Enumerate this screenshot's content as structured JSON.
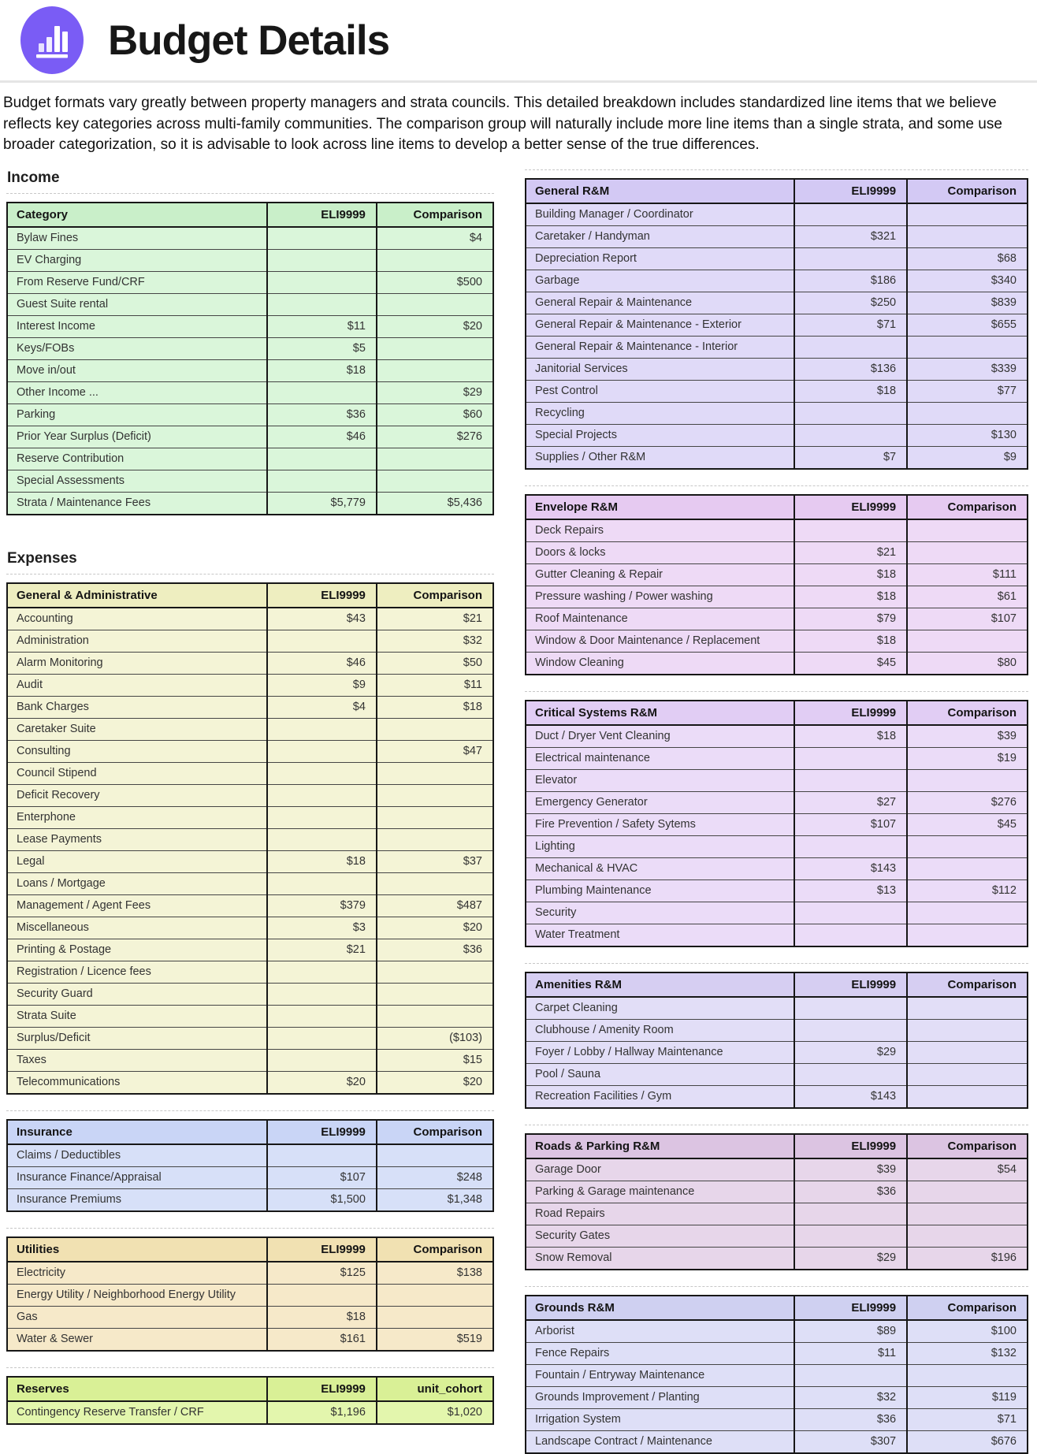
{
  "header": {
    "title": "Budget Details",
    "icon": "bar-chart-icon",
    "badge_color": "#7a5cf5"
  },
  "intro": "Budget formats vary greatly between property managers and strata councils. This detailed breakdown includes standardized line items that we believe reflects key categories across multi-family communities. The comparison group will naturally include more line items than a single strata, and some use broader categorization, so it is advisable to look across line items to develop a better sense of the true differences.",
  "sections": {
    "income": "Income",
    "expenses": "Expenses"
  },
  "layout": {
    "left": [
      {
        "heading": "income"
      },
      {
        "table": "income"
      },
      {
        "heading": "expenses"
      },
      {
        "table": "general_admin"
      },
      {
        "table": "insurance"
      },
      {
        "table": "utilities"
      },
      {
        "table": "reserves"
      }
    ],
    "right": [
      {
        "table": "general_rm"
      },
      {
        "table": "envelope_rm"
      },
      {
        "table": "critical_rm"
      },
      {
        "table": "amenities_rm"
      },
      {
        "table": "roads_rm"
      },
      {
        "table": "grounds_rm"
      }
    ]
  },
  "tables": {
    "income": {
      "title": "Category",
      "col1": "ELI9999",
      "col2": "Comparison",
      "colors": {
        "header_bg": "#c9efc9",
        "row_bg": "#daf6da"
      },
      "rows": [
        [
          "Bylaw Fines",
          "",
          "$4"
        ],
        [
          "EV Charging",
          "",
          ""
        ],
        [
          "From Reserve Fund/CRF",
          "",
          "$500"
        ],
        [
          "Guest Suite rental",
          "",
          ""
        ],
        [
          "Interest Income",
          "$11",
          "$20"
        ],
        [
          "Keys/FOBs",
          "$5",
          ""
        ],
        [
          "Move in/out",
          "$18",
          ""
        ],
        [
          "Other Income ...",
          "",
          "$29"
        ],
        [
          "Parking",
          "$36",
          "$60"
        ],
        [
          "Prior Year Surplus (Deficit)",
          "$46",
          "$276"
        ],
        [
          "Reserve Contribution",
          "",
          ""
        ],
        [
          "Special Assessments",
          "",
          ""
        ],
        [
          "Strata / Maintenance Fees",
          "$5,779",
          "$5,436"
        ]
      ]
    },
    "general_admin": {
      "title": "General & Administrative",
      "col1": "ELI9999",
      "col2": "Comparison",
      "colors": {
        "header_bg": "#eeeec0",
        "row_bg": "#f4f4d6"
      },
      "rows": [
        [
          "Accounting",
          "$43",
          "$21"
        ],
        [
          "Administration",
          "",
          "$32"
        ],
        [
          "Alarm Monitoring",
          "$46",
          "$50"
        ],
        [
          "Audit",
          "$9",
          "$11"
        ],
        [
          "Bank Charges",
          "$4",
          "$18"
        ],
        [
          "Caretaker Suite",
          "",
          ""
        ],
        [
          "Consulting",
          "",
          "$47"
        ],
        [
          "Council Stipend",
          "",
          ""
        ],
        [
          "Deficit Recovery",
          "",
          ""
        ],
        [
          "Enterphone",
          "",
          ""
        ],
        [
          "Lease Payments",
          "",
          ""
        ],
        [
          "Legal",
          "$18",
          "$37"
        ],
        [
          "Loans / Mortgage",
          "",
          ""
        ],
        [
          "Management / Agent Fees",
          "$379",
          "$487"
        ],
        [
          "Miscellaneous",
          "$3",
          "$20"
        ],
        [
          "Printing & Postage",
          "$21",
          "$36"
        ],
        [
          "Registration / Licence fees",
          "",
          ""
        ],
        [
          "Security Guard",
          "",
          ""
        ],
        [
          "Strata Suite",
          "",
          ""
        ],
        [
          "Surplus/Deficit",
          "",
          "($103)"
        ],
        [
          "Taxes",
          "",
          "$15"
        ],
        [
          "Telecommunications",
          "$20",
          "$20"
        ]
      ]
    },
    "insurance": {
      "title": "Insurance",
      "col1": "ELI9999",
      "col2": "Comparison",
      "colors": {
        "header_bg": "#c9d5f6",
        "row_bg": "#d7e0f8"
      },
      "rows": [
        [
          "Claims / Deductibles",
          "",
          ""
        ],
        [
          "Insurance Finance/Appraisal",
          "$107",
          "$248"
        ],
        [
          "Insurance Premiums",
          "$1,500",
          "$1,348"
        ]
      ]
    },
    "utilities": {
      "title": "Utilities",
      "col1": "ELI9999",
      "col2": "Comparison",
      "colors": {
        "header_bg": "#f1e1b2",
        "row_bg": "#f6e9c9"
      },
      "rows": [
        [
          "Electricity",
          "$125",
          "$138"
        ],
        [
          "Energy Utility / Neighborhood Energy Utility",
          "",
          ""
        ],
        [
          "Gas",
          "$18",
          ""
        ],
        [
          "Water & Sewer",
          "$161",
          "$519"
        ]
      ]
    },
    "reserves": {
      "title": "Reserves",
      "col1": "ELI9999",
      "col2": "unit_cohort",
      "colors": {
        "header_bg": "#d9f096",
        "row_bg": "#e3f6ad"
      },
      "rows": [
        [
          "Contingency Reserve Transfer / CRF",
          "$1,196",
          "$1,020"
        ]
      ]
    },
    "general_rm": {
      "title": "General R&M",
      "col1": "ELI9999",
      "col2": "Comparison",
      "colors": {
        "header_bg": "#d3c9f4",
        "row_bg": "#e0daf8"
      },
      "rows": [
        [
          "Building Manager / Coordinator",
          "",
          ""
        ],
        [
          "Caretaker / Handyman",
          "$321",
          ""
        ],
        [
          "Depreciation Report",
          "",
          "$68"
        ],
        [
          "Garbage",
          "$186",
          "$340"
        ],
        [
          "General Repair & Maintenance",
          "$250",
          "$839"
        ],
        [
          "General Repair & Maintenance - Exterior",
          "$71",
          "$655"
        ],
        [
          "General Repair & Maintenance - Interior",
          "",
          ""
        ],
        [
          "Janitorial Services",
          "$136",
          "$339"
        ],
        [
          "Pest Control",
          "$18",
          "$77"
        ],
        [
          "Recycling",
          "",
          ""
        ],
        [
          "Special Projects",
          "",
          "$130"
        ],
        [
          "Supplies / Other R&M",
          "$7",
          "$9"
        ]
      ]
    },
    "envelope_rm": {
      "title": "Envelope R&M",
      "col1": "ELI9999",
      "col2": "Comparison",
      "colors": {
        "header_bg": "#e6caf1",
        "row_bg": "#eedaf6"
      },
      "rows": [
        [
          "Deck Repairs",
          "",
          ""
        ],
        [
          "Doors & locks",
          "$21",
          ""
        ],
        [
          "Gutter Cleaning & Repair",
          "$18",
          "$111"
        ],
        [
          "Pressure washing / Power washing",
          "$18",
          "$61"
        ],
        [
          "Roof Maintenance",
          "$79",
          "$107"
        ],
        [
          "Window & Door Maintenance / Replacement",
          "$18",
          ""
        ],
        [
          "Window Cleaning",
          "$45",
          "$80"
        ]
      ]
    },
    "critical_rm": {
      "title": "Critical Systems R&M",
      "col1": "ELI9999",
      "col2": "Comparison",
      "colors": {
        "header_bg": "#e1cdf4",
        "row_bg": "#ebdcf8"
      },
      "rows": [
        [
          "Duct / Dryer Vent Cleaning",
          "$18",
          "$39"
        ],
        [
          "Electrical maintenance",
          "",
          "$19"
        ],
        [
          "Elevator",
          "",
          ""
        ],
        [
          "Emergency Generator",
          "$27",
          "$276"
        ],
        [
          "Fire Prevention / Safety Sytems",
          "$107",
          "$45"
        ],
        [
          "Lighting",
          "",
          ""
        ],
        [
          "Mechanical & HVAC",
          "$143",
          ""
        ],
        [
          "Plumbing Maintenance",
          "$13",
          "$112"
        ],
        [
          "Security",
          "",
          ""
        ],
        [
          "Water Treatment",
          "",
          ""
        ]
      ]
    },
    "amenities_rm": {
      "title": "Amenities R&M",
      "col1": "ELI9999",
      "col2": "Comparison",
      "colors": {
        "header_bg": "#d6cef2",
        "row_bg": "#e2def7"
      },
      "rows": [
        [
          "Carpet Cleaning",
          "",
          ""
        ],
        [
          "Clubhouse / Amenity Room",
          "",
          ""
        ],
        [
          "Foyer / Lobby / Hallway Maintenance",
          "$29",
          ""
        ],
        [
          "Pool / Sauna",
          "",
          ""
        ],
        [
          "Recreation Facilities / Gym",
          "$143",
          ""
        ]
      ]
    },
    "roads_rm": {
      "title": "Roads & Parking R&M",
      "col1": "ELI9999",
      "col2": "Comparison",
      "colors": {
        "header_bg": "#dcc4e2",
        "row_bg": "#e7d6ea"
      },
      "rows": [
        [
          "Garage Door",
          "$39",
          "$54"
        ],
        [
          "Parking & Garage maintenance",
          "$36",
          ""
        ],
        [
          "Road Repairs",
          "",
          ""
        ],
        [
          "Security Gates",
          "",
          ""
        ],
        [
          "Snow Removal",
          "$29",
          "$196"
        ]
      ]
    },
    "grounds_rm": {
      "title": "Grounds R&M",
      "col1": "ELI9999",
      "col2": "Comparison",
      "colors": {
        "header_bg": "#cfd0f1",
        "row_bg": "#dedff7"
      },
      "rows": [
        [
          "Arborist",
          "$89",
          "$100"
        ],
        [
          "Fence Repairs",
          "$11",
          "$132"
        ],
        [
          "Fountain / Entryway Maintenance",
          "",
          ""
        ],
        [
          "Grounds Improvement / Planting",
          "$32",
          "$119"
        ],
        [
          "Irrigation System",
          "$36",
          "$71"
        ],
        [
          "Landscape Contract / Maintenance",
          "$307",
          "$676"
        ]
      ]
    }
  }
}
